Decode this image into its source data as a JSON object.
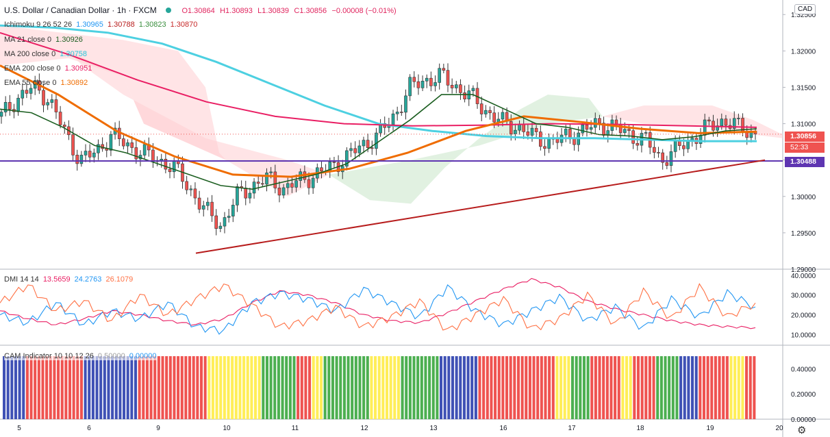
{
  "header": {
    "symbol": "U.S. Dollar / Canadian Dollar · 1h · FXCM",
    "open": "O1.30864",
    "high": "H1.30893",
    "low": "L1.30839",
    "close": "C1.30856",
    "change": "−0.00008 (−0.01%)"
  },
  "indicators": {
    "ichimoku": {
      "label": "Ichimoku 9 26 52 26",
      "v1": "1.30965",
      "v2": "1.30788",
      "v3": "1.30823",
      "v4": "1.30870"
    },
    "ma21": {
      "label": "MA 21 close 0",
      "v": "1.30926"
    },
    "ma200": {
      "label": "MA 200 close 0",
      "v": "1.30758"
    },
    "ema200": {
      "label": "EMA 200 close 0",
      "v": "1.30951"
    },
    "ema55": {
      "label": "EMA 55 close 0",
      "v": "1.30892"
    },
    "dmi": {
      "label": "DMI 14 14",
      "v1": "13.5659",
      "v2": "24.2763",
      "v3": "26.1079"
    },
    "cam": {
      "label": "CAM Indicator 10 10 12 26",
      "v1": "0.50000",
      "v2": "0.00000"
    }
  },
  "currency": "CAD",
  "price_tags": {
    "last": "1.30856",
    "countdown": "52:33",
    "level": "1.30488"
  },
  "colors": {
    "up": "#26a69a",
    "down": "#ef5350",
    "ma21": "#1b5e20",
    "ma200": "#4dd0e1",
    "ema200": "#e91e63",
    "ema55": "#ef6c00",
    "level": "#5e35b1",
    "trend": "#b71c1c",
    "cloud_bear": "#ffcdd2",
    "cloud_bull": "#c8e6c9",
    "dmi_plus": "#2196f3",
    "dmi_minus": "#ff7043",
    "adx": "#e91e63"
  },
  "chart_data": [
    {
      "type": "candlestick",
      "title": "U.S. Dollar / Canadian Dollar · 1h · FXCM",
      "x_ticks": [
        "5",
        "6",
        "9",
        "10",
        "11",
        "12",
        "13",
        "16",
        "17",
        "18",
        "19",
        "20"
      ],
      "y_ticks": [
        "1.32500",
        "1.32000",
        "1.31500",
        "1.31000",
        "1.30500",
        "1.30000",
        "1.29500",
        "1.29000"
      ],
      "ylim": [
        1.29,
        1.327
      ],
      "horizontal_level": 1.30488,
      "trendline": {
        "from": {
          "x": "9",
          "y": 1.2922
        },
        "to": {
          "x": "19",
          "y": 1.305
        }
      },
      "series": [
        {
          "name": "Price",
          "values": [
            1.311,
            1.3135,
            1.315,
            1.3135,
            1.309,
            1.305,
            1.306,
            1.3085,
            1.307,
            1.306,
            1.305,
            1.304,
            1.301,
            1.298,
            1.296,
            1.3,
            1.3015,
            1.3025,
            1.301,
            1.3022,
            1.303,
            1.304,
            1.3055,
            1.307,
            1.3085,
            1.311,
            1.315,
            1.316,
            1.3165,
            1.315,
            1.3135,
            1.3115,
            1.31,
            1.3095,
            1.308,
            1.3075,
            1.3082,
            1.309,
            1.31,
            1.3095,
            1.3085,
            1.3078,
            1.305,
            1.3065,
            1.308,
            1.3095,
            1.3105,
            1.3094,
            1.3086
          ]
        },
        {
          "name": "MA 21 close 0",
          "values": [
            1.312,
            1.3115,
            1.3095,
            1.307,
            1.306,
            1.3045,
            1.303,
            1.3015,
            1.301,
            1.302,
            1.303,
            1.3045,
            1.3075,
            1.3105,
            1.314,
            1.314,
            1.312,
            1.31,
            1.3095,
            1.3085,
            1.3083,
            1.3078,
            1.3082,
            1.309,
            1.3093
          ]
        },
        {
          "name": "MA 200 close 0",
          "values": [
            1.3235,
            1.3232,
            1.3225,
            1.321,
            1.3185,
            1.3155,
            1.3125,
            1.31,
            1.309,
            1.3083,
            1.308,
            1.308,
            1.3078,
            1.3076,
            1.3076
          ]
        },
        {
          "name": "EMA 200 close 0",
          "values": [
            1.3225,
            1.3195,
            1.316,
            1.313,
            1.311,
            1.31,
            1.3097,
            1.3098,
            1.31,
            1.3099,
            1.3097,
            1.3095
          ]
        },
        {
          "name": "EMA 55 close 0",
          "values": [
            1.318,
            1.314,
            1.309,
            1.3055,
            1.303,
            1.3027,
            1.3038,
            1.306,
            1.309,
            1.311,
            1.3102,
            1.3093,
            1.3087,
            1.3089
          ]
        }
      ]
    },
    {
      "type": "line",
      "title": "DMI 14 14",
      "y_ticks": [
        "40.0000",
        "30.0000",
        "20.0000",
        "10.0000"
      ],
      "ylim": [
        5,
        42
      ],
      "series": [
        {
          "name": "ADX",
          "values": [
            22,
            18,
            15,
            18,
            22,
            20,
            17,
            15,
            18,
            26,
            32,
            30,
            26,
            20,
            17,
            16,
            21,
            27,
            33,
            38,
            34,
            27,
            23,
            20,
            17,
            15,
            14,
            13.5
          ]
        },
        {
          "name": "+DI",
          "values": [
            20,
            16,
            26,
            15,
            22,
            18,
            26,
            14,
            12,
            26,
            31,
            28,
            22,
            33,
            26,
            19,
            34,
            22,
            15,
            22,
            29,
            17,
            24,
            13,
            28,
            19,
            31,
            24
          ]
        },
        {
          "name": "-DI",
          "values": [
            26,
            35,
            22,
            27,
            17,
            30,
            20,
            28,
            35,
            25,
            14,
            17,
            24,
            14,
            19,
            27,
            12,
            20,
            28,
            13,
            18,
            30,
            15,
            32,
            18,
            34,
            19,
            26
          ]
        }
      ]
    },
    {
      "type": "bar",
      "title": "CAM Indicator 10 10 12 26",
      "y_ticks": [
        "0.40000",
        "0.20000",
        "0.00000"
      ],
      "ylim": [
        0,
        0.5
      ],
      "segments": [
        {
          "color": "blue",
          "count": 6
        },
        {
          "color": "red",
          "count": 15
        },
        {
          "color": "blue",
          "count": 14
        },
        {
          "color": "red",
          "count": 18
        },
        {
          "color": "yellow",
          "count": 14
        },
        {
          "color": "green",
          "count": 9
        },
        {
          "color": "red",
          "count": 4
        },
        {
          "color": "yellow",
          "count": 3
        },
        {
          "color": "green",
          "count": 12
        },
        {
          "color": "yellow",
          "count": 8
        },
        {
          "color": "green",
          "count": 10
        },
        {
          "color": "blue",
          "count": 10
        },
        {
          "color": "red",
          "count": 20
        },
        {
          "color": "yellow",
          "count": 4
        },
        {
          "color": "green",
          "count": 5
        },
        {
          "color": "red",
          "count": 8
        },
        {
          "color": "yellow",
          "count": 3
        },
        {
          "color": "red",
          "count": 6
        },
        {
          "color": "green",
          "count": 6
        },
        {
          "color": "blue",
          "count": 5
        },
        {
          "color": "red",
          "count": 8
        },
        {
          "color": "yellow",
          "count": 4
        },
        {
          "color": "red",
          "count": 3
        }
      ]
    }
  ]
}
